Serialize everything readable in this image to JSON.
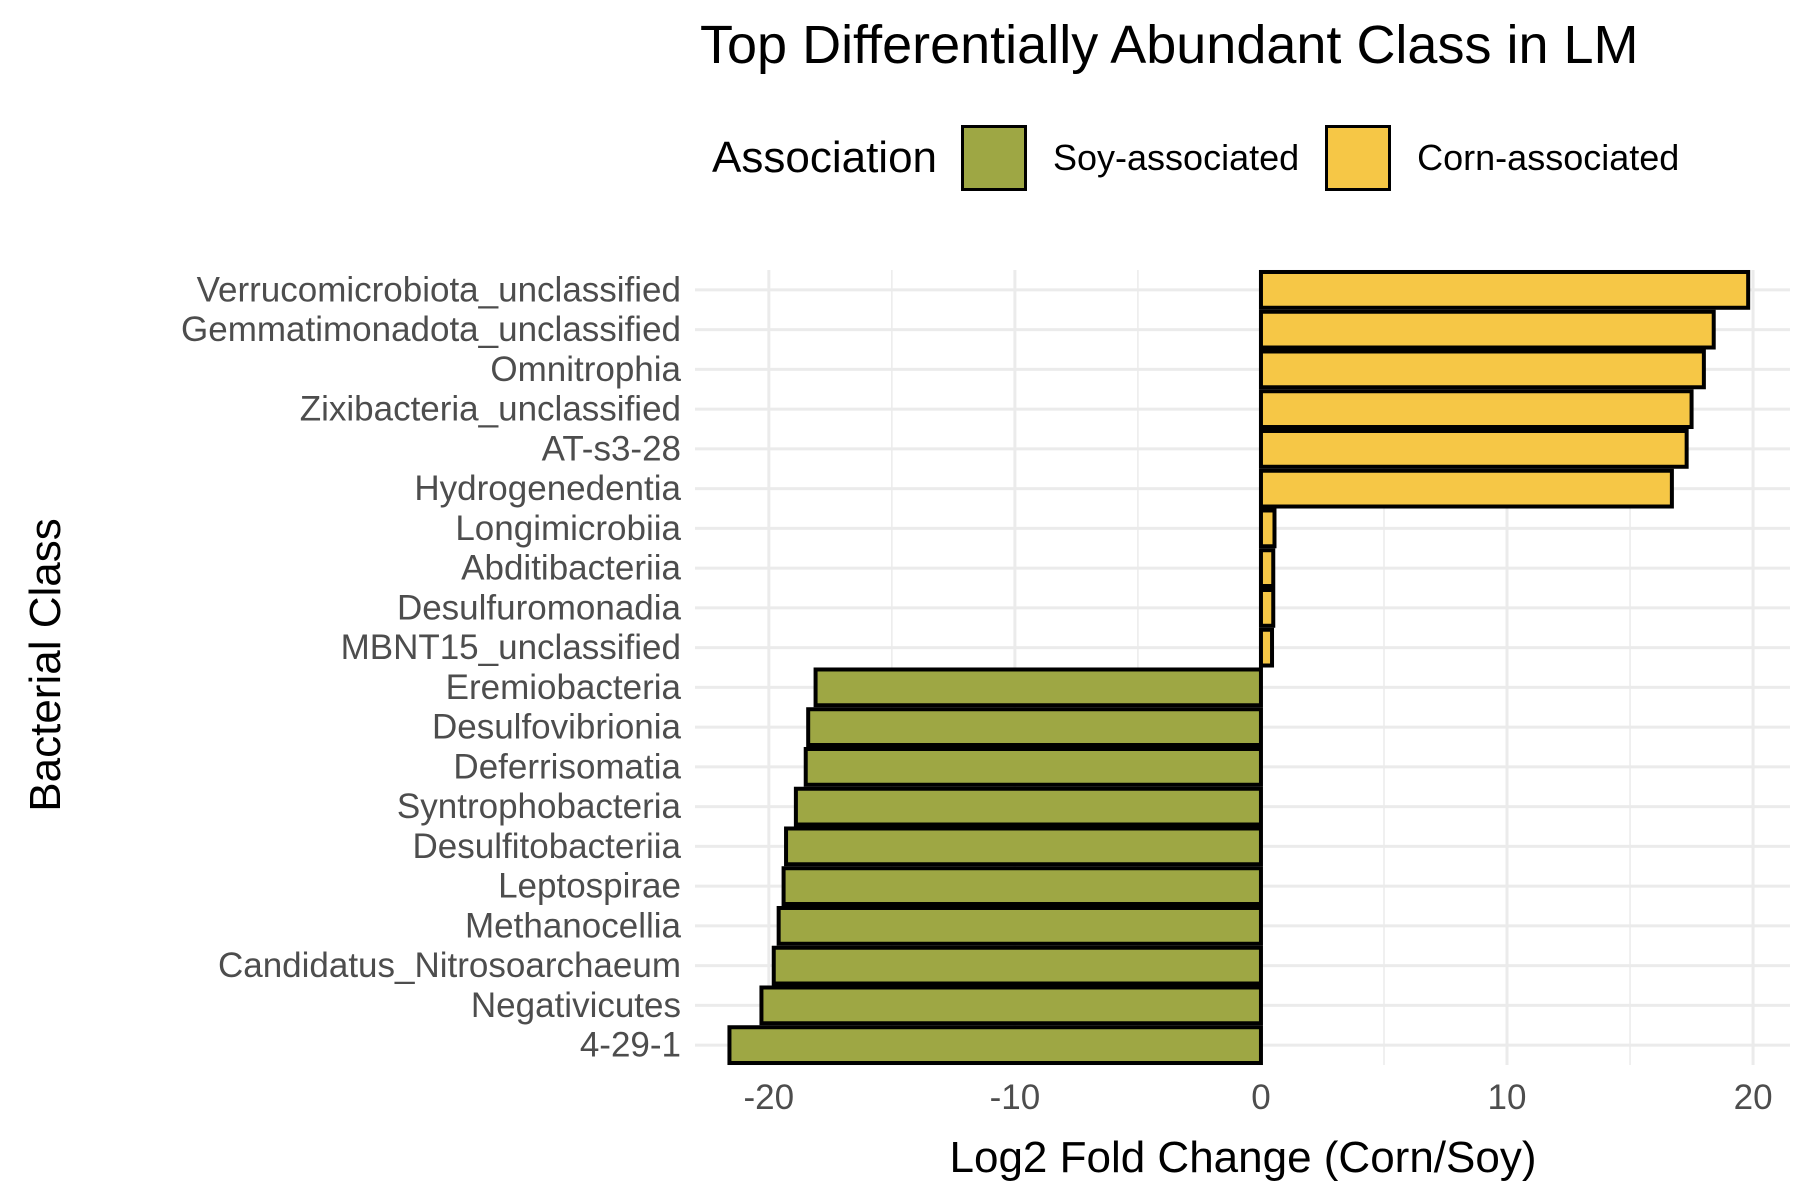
{
  "chart_data": {
    "type": "bar",
    "orientation": "horizontal",
    "title": "Top Differentially Abundant Class in LM",
    "xlabel": "Log2 Fold Change (Corn/Soy)",
    "ylabel": "Bacterial Class",
    "xlim": [
      -23,
      21.5
    ],
    "xticks": [
      -20,
      -10,
      0,
      10,
      20
    ],
    "grid": true,
    "legend_position": "top",
    "legend": {
      "title": "Association",
      "entries": [
        {
          "name": "Soy-associated",
          "color": "#9ea744"
        },
        {
          "name": "Corn-associated",
          "color": "#f6c746"
        }
      ]
    },
    "categories": [
      "Verrucomicrobiota_unclassified",
      "Gemmatimonadota_unclassified",
      "Omnitrophia",
      "Zixibacteria_unclassified",
      "AT-s3-28",
      "Hydrogenedentia",
      "Longimicrobiia",
      "Abditibacteriia",
      "Desulfuromonadia",
      "MBNT15_unclassified",
      "Eremiobacteria",
      "Desulfovibrionia",
      "Deferrisomatia",
      "Syntrophobacteria",
      "Desulfitobacteriia",
      "Leptospirae",
      "Methanocellia",
      "Candidatus_Nitrosoarchaeum",
      "Negativicutes",
      "4-29-1"
    ],
    "values": [
      19.8,
      18.4,
      18.0,
      17.5,
      17.3,
      16.7,
      0.55,
      0.5,
      0.5,
      0.45,
      -18.1,
      -18.4,
      -18.5,
      -18.9,
      -19.3,
      -19.4,
      -19.6,
      -19.8,
      -20.3,
      -21.6
    ],
    "association": [
      "Corn-associated",
      "Corn-associated",
      "Corn-associated",
      "Corn-associated",
      "Corn-associated",
      "Corn-associated",
      "Corn-associated",
      "Corn-associated",
      "Corn-associated",
      "Corn-associated",
      "Soy-associated",
      "Soy-associated",
      "Soy-associated",
      "Soy-associated",
      "Soy-associated",
      "Soy-associated",
      "Soy-associated",
      "Soy-associated",
      "Soy-associated",
      "Soy-associated"
    ]
  }
}
